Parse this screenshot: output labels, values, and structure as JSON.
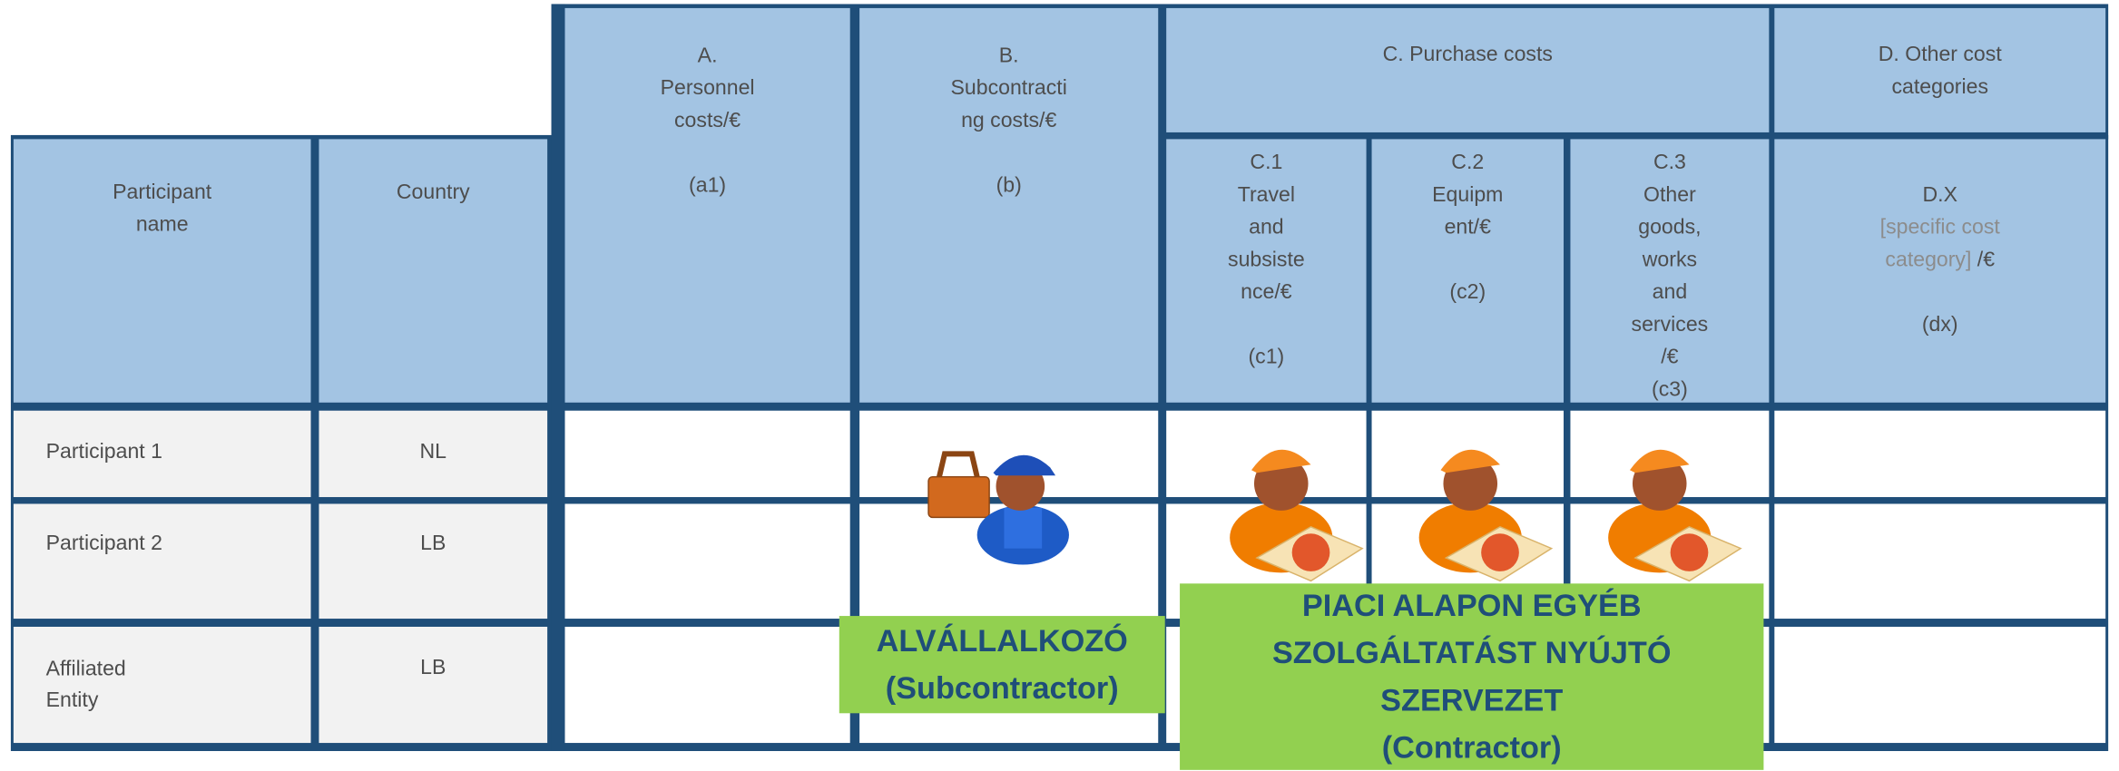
{
  "header": {
    "participant_name": "Participant\nname",
    "country": "Country",
    "a": "A.\nPersonnel\ncosts/€\n\n(a1)",
    "b": "B.\nSubcontracti\nng costs/€\n\n(b)",
    "c": "C. Purchase  costs",
    "d": "D. Other  cost\ncategories",
    "c1": "C.1\nTravel\nand\nsubsiste\nnce/€\n\n(c1)",
    "c2": "C.2\nEquipm\nent/€\n\n(c2)",
    "c3": "C.3\nOther\ngoods,\nworks\nand\nservices\n/€\n(c3)",
    "dx": {
      "title": "D.X",
      "placeholder": "[specific  cost\ncategory]",
      "unit": " /€",
      "code": "(dx)"
    }
  },
  "rows": [
    [
      "Participant  1",
      "NL"
    ],
    [
      "Participant  2",
      "LB"
    ],
    [
      "Affiliated\nEntity",
      "LB"
    ]
  ],
  "callouts": {
    "subcontractor": "ALVÁLLALKOZÓ\n(Subcontractor)",
    "contractor": "PIACI ALAPON EGYÉB\nSZOLGÁLTATÁST NYÚJTÓ SZERVEZET\n(Contractor)"
  }
}
